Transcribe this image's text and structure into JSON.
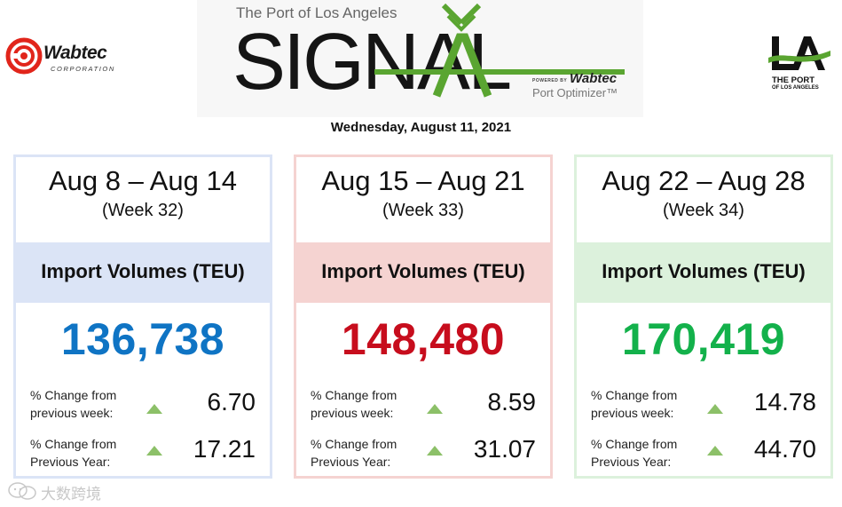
{
  "header": {
    "left_logo": {
      "name": "Wabtec",
      "tagline": "CORPORATION",
      "icon": "wabtec-logo-icon",
      "color": "#e1251b"
    },
    "banner": {
      "tagline": "The Port of Los Angeles",
      "wordmark": "SIGNAL",
      "powered_by": "POWERED BY",
      "brand": "Wabtec",
      "product": "Port Optimizer™",
      "accent_color": "#5aa531"
    },
    "right_logo": {
      "mark": "LA",
      "name": "THE PORT",
      "subname": "OF LOS ANGELES",
      "icon": "port-of-la-logo-icon"
    },
    "date": "Wednesday, August 11, 2021"
  },
  "weeks": [
    {
      "range": "Aug 8 – Aug 14",
      "week": "(Week 32)",
      "metric": "Import Volumes (TEU)",
      "value": "136,738",
      "color": "#0f74c4",
      "change_week_label": "% Change from previous week:",
      "change_week": "6.70",
      "change_year_label": "% Change from Previous Year:",
      "change_year": "17.21",
      "trend_icon": "up-triangle-icon"
    },
    {
      "range": "Aug 15 – Aug 21",
      "week": "(Week 33)",
      "metric": "Import Volumes (TEU)",
      "value": "148,480",
      "color": "#c70d1d",
      "change_week_label": "% Change from previous week:",
      "change_week": "8.59",
      "change_year_label": "% Change from Previous Year:",
      "change_year": "31.07",
      "trend_icon": "up-triangle-icon"
    },
    {
      "range": "Aug 22 – Aug 28",
      "week": "(Week 34)",
      "metric": "Import Volumes (TEU)",
      "value": "170,419",
      "color": "#13b14b",
      "change_week_label": "% Change from previous week:",
      "change_week": "14.78",
      "change_year_label": "% Change from Previous Year:",
      "change_year": "44.70",
      "trend_icon": "up-triangle-icon"
    }
  ],
  "watermark": {
    "text": "大数跨境",
    "icon": "wechat-icon"
  }
}
